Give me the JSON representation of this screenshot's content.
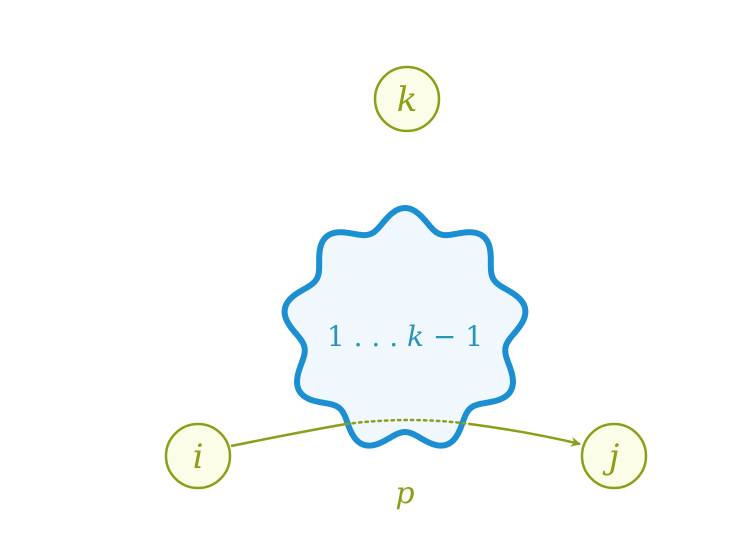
{
  "colors": {
    "node_stroke": "#8aa019",
    "node_fill": "#fbfde9",
    "node_text": "#8aa019",
    "blob_stroke": "#1b8fd2",
    "blob_fill": "#f1f8fd",
    "blob_text": "#2596b8",
    "path_stroke": "#8aa019"
  },
  "nodes": {
    "k": {
      "label": "k"
    },
    "i": {
      "label": "i"
    },
    "j": {
      "label": "j"
    }
  },
  "blob": {
    "label_prefix": "1 . . . ",
    "label_var": "k",
    "label_suffix": " − 1"
  },
  "path": {
    "label": "p"
  }
}
